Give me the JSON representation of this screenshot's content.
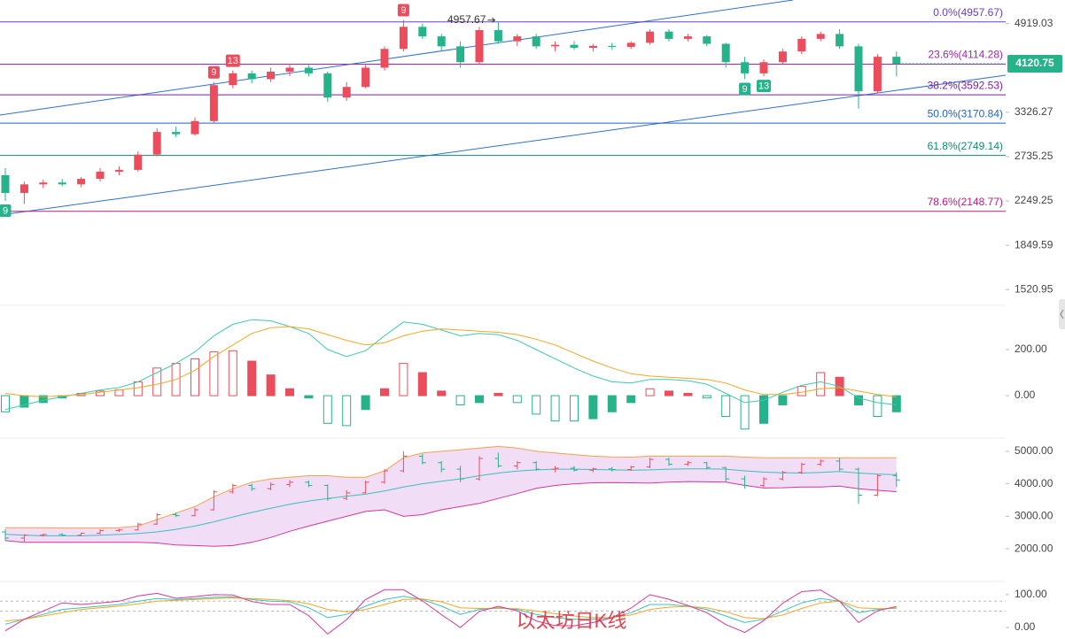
{
  "chart_data": [
    {
      "type": "candlestick",
      "watermark": "以太坊日K线",
      "log_scale": true,
      "ylim": [
        1447,
        5460
      ],
      "yticks": [
        4919.03,
        3326.27,
        2735.25,
        2249.25,
        1849.59,
        1520.95
      ],
      "up_color": "#eb4d5c",
      "down_color": "#26b28a",
      "fib_levels": [
        {
          "label": "0.0%(4957.67)",
          "value": 4957.67,
          "color": "#6a3fc6"
        },
        {
          "label": "23.6%(4114.28)",
          "value": 4114.28,
          "color": "#9c27b0"
        },
        {
          "label": "38.2%(3592.53)",
          "value": 3592.53,
          "color": "#7b1fa2"
        },
        {
          "label": "50.0%(3170.84)",
          "value": 3170.84,
          "color": "#1e63c4"
        },
        {
          "label": "61.8%(2749.14)",
          "value": 2749.14,
          "color": "#0f8a7a"
        },
        {
          "label": "78.6%(2148.77)",
          "value": 2148.77,
          "color": "#c2187e"
        }
      ],
      "candles": [
        {
          "open": 2520,
          "high": 2600,
          "low": 2250,
          "close": 2330,
          "marker": "9",
          "marker_side": "below"
        },
        {
          "open": 2330,
          "high": 2450,
          "low": 2220,
          "close": 2420
        },
        {
          "open": 2420,
          "high": 2470,
          "low": 2380,
          "close": 2440
        },
        {
          "open": 2440,
          "high": 2480,
          "low": 2400,
          "close": 2420
        },
        {
          "open": 2420,
          "high": 2500,
          "low": 2390,
          "close": 2480
        },
        {
          "open": 2480,
          "high": 2600,
          "low": 2450,
          "close": 2560
        },
        {
          "open": 2560,
          "high": 2620,
          "low": 2520,
          "close": 2580
        },
        {
          "open": 2580,
          "high": 2800,
          "low": 2560,
          "close": 2760
        },
        {
          "open": 2760,
          "high": 3100,
          "low": 2740,
          "close": 3050
        },
        {
          "open": 3050,
          "high": 3120,
          "low": 2980,
          "close": 3020
        },
        {
          "open": 3020,
          "high": 3250,
          "low": 3000,
          "close": 3200
        },
        {
          "open": 3200,
          "high": 3800,
          "low": 3180,
          "close": 3750,
          "marker": "9",
          "marker_side": "above"
        },
        {
          "open": 3750,
          "high": 4000,
          "low": 3700,
          "close": 3950,
          "marker": "13",
          "marker_side": "above"
        },
        {
          "open": 3950,
          "high": 4000,
          "low": 3780,
          "close": 3850
        },
        {
          "open": 3850,
          "high": 4050,
          "low": 3800,
          "close": 3980
        },
        {
          "open": 3980,
          "high": 4120,
          "low": 3900,
          "close": 4050
        },
        {
          "open": 4050,
          "high": 4100,
          "low": 3900,
          "close": 3950
        },
        {
          "open": 3950,
          "high": 3980,
          "low": 3480,
          "close": 3550
        },
        {
          "open": 3550,
          "high": 3800,
          "low": 3500,
          "close": 3720
        },
        {
          "open": 3720,
          "high": 4100,
          "low": 3700,
          "close": 4050
        },
        {
          "open": 4050,
          "high": 4450,
          "low": 4000,
          "close": 4400
        },
        {
          "open": 4400,
          "high": 5000,
          "low": 4350,
          "close": 4850,
          "marker": "9",
          "marker_side": "above"
        },
        {
          "open": 4850,
          "high": 4920,
          "low": 4600,
          "close": 4650
        },
        {
          "open": 4650,
          "high": 4700,
          "low": 4350,
          "close": 4450
        },
        {
          "open": 4450,
          "high": 4550,
          "low": 4050,
          "close": 4150
        },
        {
          "open": 4150,
          "high": 4850,
          "low": 4100,
          "close": 4780
        },
        {
          "open": 4780,
          "high": 4957.67,
          "low": 4500,
          "close": 4550,
          "annotate_high": true
        },
        {
          "open": 4550,
          "high": 4700,
          "low": 4450,
          "close": 4650
        },
        {
          "open": 4650,
          "high": 4700,
          "low": 4400,
          "close": 4450
        },
        {
          "open": 4450,
          "high": 4550,
          "low": 4350,
          "close": 4480
        },
        {
          "open": 4480,
          "high": 4550,
          "low": 4380,
          "close": 4420
        },
        {
          "open": 4420,
          "high": 4500,
          "low": 4350,
          "close": 4460
        },
        {
          "open": 4460,
          "high": 4520,
          "low": 4380,
          "close": 4440
        },
        {
          "open": 4440,
          "high": 4550,
          "low": 4400,
          "close": 4520
        },
        {
          "open": 4520,
          "high": 4800,
          "low": 4480,
          "close": 4750
        },
        {
          "open": 4750,
          "high": 4800,
          "low": 4550,
          "close": 4600
        },
        {
          "open": 4600,
          "high": 4700,
          "low": 4550,
          "close": 4650
        },
        {
          "open": 4650,
          "high": 4680,
          "low": 4450,
          "close": 4500
        },
        {
          "open": 4500,
          "high": 4520,
          "low": 4050,
          "close": 4150
        },
        {
          "open": 4150,
          "high": 4250,
          "low": 3850,
          "close": 3950,
          "marker": "9",
          "marker_side": "below"
        },
        {
          "open": 3950,
          "high": 4200,
          "low": 3900,
          "close": 4150,
          "marker": "13",
          "marker_side": "below"
        },
        {
          "open": 4150,
          "high": 4400,
          "low": 4100,
          "close": 4350
        },
        {
          "open": 4350,
          "high": 4650,
          "low": 4300,
          "close": 4600
        },
        {
          "open": 4600,
          "high": 4750,
          "low": 4550,
          "close": 4700
        },
        {
          "open": 4700,
          "high": 4800,
          "low": 4400,
          "close": 4450
        },
        {
          "open": 4450,
          "high": 4500,
          "low": 3380,
          "close": 3650
        },
        {
          "open": 3650,
          "high": 4300,
          "low": 3620,
          "close": 4250
        },
        {
          "open": 4250,
          "high": 4350,
          "low": 3900,
          "close": 4120.75
        }
      ]
    },
    {
      "type": "macd",
      "ylim": [
        -165,
        373
      ],
      "yticks": [
        {
          "value": 200,
          "label": "200.00"
        },
        {
          "value": 0,
          "label": "0.00"
        }
      ],
      "histogram": {
        "up_color": "#eb4d5c",
        "down_color": "#26b28a",
        "values": [
          -70,
          -50,
          -30,
          -10,
          10,
          20,
          25,
          60,
          120,
          140,
          160,
          190,
          195,
          150,
          90,
          30,
          -10,
          -120,
          -130,
          -60,
          30,
          140,
          100,
          20,
          -40,
          -30,
          10,
          -30,
          -80,
          -110,
          -110,
          -100,
          -70,
          -30,
          30,
          20,
          10,
          -10,
          -90,
          -145,
          -120,
          -40,
          40,
          100,
          80,
          -40,
          -90,
          -70
        ]
      },
      "series": [
        {
          "color": "#3cc9b0",
          "values": [
            -60,
            -40,
            -20,
            -5,
            10,
            25,
            35,
            60,
            100,
            140,
            190,
            260,
            310,
            330,
            325,
            300,
            270,
            200,
            170,
            195,
            260,
            320,
            310,
            285,
            260,
            270,
            265,
            240,
            200,
            160,
            120,
            85,
            60,
            55,
            70,
            70,
            65,
            50,
            10,
            -30,
            -20,
            15,
            45,
            60,
            40,
            -10,
            -30,
            -40
          ]
        },
        {
          "color": "#f5a623",
          "values": [
            10,
            0,
            -5,
            0,
            5,
            15,
            25,
            35,
            50,
            70,
            110,
            170,
            220,
            270,
            295,
            300,
            290,
            265,
            240,
            220,
            230,
            260,
            280,
            290,
            285,
            280,
            275,
            265,
            245,
            220,
            185,
            150,
            120,
            95,
            85,
            80,
            75,
            70,
            55,
            25,
            5,
            5,
            15,
            30,
            35,
            20,
            5,
            -5
          ]
        }
      ]
    },
    {
      "type": "bollinger",
      "ylim": [
        1050,
        5270
      ],
      "yticks": [
        {
          "value": 5000,
          "label": "5000.00"
        },
        {
          "value": 4000,
          "label": "4000.00"
        },
        {
          "value": 3000,
          "label": "3000.00"
        },
        {
          "value": 2000,
          "label": "2000.00"
        }
      ],
      "band_color": "#f1ddf6",
      "series": [
        {
          "color": "#f5a04a",
          "values": [
            2650,
            2650,
            2650,
            2640,
            2640,
            2640,
            2650,
            2700,
            2900,
            3100,
            3300,
            3600,
            3850,
            4050,
            4150,
            4200,
            4250,
            4250,
            4200,
            4200,
            4400,
            4800,
            4950,
            5000,
            5050,
            5100,
            5150,
            5100,
            5000,
            4950,
            4900,
            4850,
            4830,
            4820,
            4850,
            4850,
            4850,
            4850,
            4850,
            4820,
            4800,
            4800,
            4800,
            4800,
            4800,
            4800,
            4800,
            4800
          ]
        },
        {
          "color": "#3cc0bd",
          "values": [
            2450,
            2420,
            2400,
            2400,
            2400,
            2420,
            2440,
            2470,
            2520,
            2600,
            2700,
            2830,
            2980,
            3120,
            3250,
            3370,
            3470,
            3550,
            3620,
            3680,
            3780,
            3900,
            4000,
            4080,
            4150,
            4250,
            4330,
            4390,
            4430,
            4450,
            4450,
            4440,
            4430,
            4420,
            4430,
            4450,
            4460,
            4460,
            4450,
            4400,
            4360,
            4340,
            4330,
            4350,
            4380,
            4330,
            4300,
            4280
          ]
        },
        {
          "color": "#d6359c",
          "values": [
            2250,
            2200,
            2200,
            2200,
            2200,
            2200,
            2200,
            2200,
            2180,
            2120,
            2100,
            2080,
            2100,
            2200,
            2350,
            2540,
            2700,
            2850,
            3000,
            3150,
            3200,
            3000,
            3050,
            3200,
            3300,
            3400,
            3550,
            3700,
            3860,
            3950,
            4000,
            4030,
            4040,
            4030,
            4020,
            4050,
            4070,
            4060,
            4050,
            3950,
            3870,
            3880,
            3900,
            3900,
            3930,
            3850,
            3800,
            3760
          ]
        }
      ]
    },
    {
      "type": "kdj",
      "ylim": [
        -35,
        132
      ],
      "yticks": [
        {
          "value": 100,
          "label": "100.00"
        },
        {
          "value": 0,
          "label": "0.00"
        }
      ],
      "hlines": [
        80,
        50
      ],
      "series": [
        {
          "color": "#3cc0bd",
          "values": [
            10,
            25,
            40,
            55,
            60,
            65,
            70,
            80,
            88,
            85,
            88,
            92,
            93,
            85,
            80,
            78,
            60,
            30,
            40,
            65,
            85,
            95,
            85,
            65,
            40,
            55,
            60,
            55,
            40,
            30,
            25,
            25,
            30,
            45,
            70,
            70,
            65,
            55,
            35,
            15,
            25,
            50,
            75,
            88,
            80,
            45,
            55,
            60
          ]
        },
        {
          "color": "#f5a623",
          "values": [
            20,
            25,
            35,
            45,
            55,
            60,
            65,
            72,
            80,
            83,
            85,
            88,
            90,
            88,
            85,
            82,
            72,
            55,
            48,
            55,
            70,
            85,
            87,
            78,
            60,
            58,
            58,
            57,
            50,
            42,
            35,
            30,
            30,
            38,
            55,
            62,
            64,
            60,
            48,
            30,
            27,
            38,
            58,
            75,
            80,
            60,
            57,
            58
          ]
        },
        {
          "color": "#d6359c",
          "values": [
            -10,
            25,
            50,
            75,
            70,
            75,
            80,
            96,
            104,
            89,
            94,
            100,
            99,
            79,
            70,
            70,
            36,
            -20,
            24,
            85,
            115,
            115,
            81,
            39,
            0,
            49,
            64,
            51,
            20,
            6,
            5,
            15,
            30,
            59,
            100,
            86,
            67,
            45,
            9,
            -15,
            21,
            74,
            109,
            114,
            80,
            15,
            51,
            64
          ]
        }
      ]
    }
  ]
}
